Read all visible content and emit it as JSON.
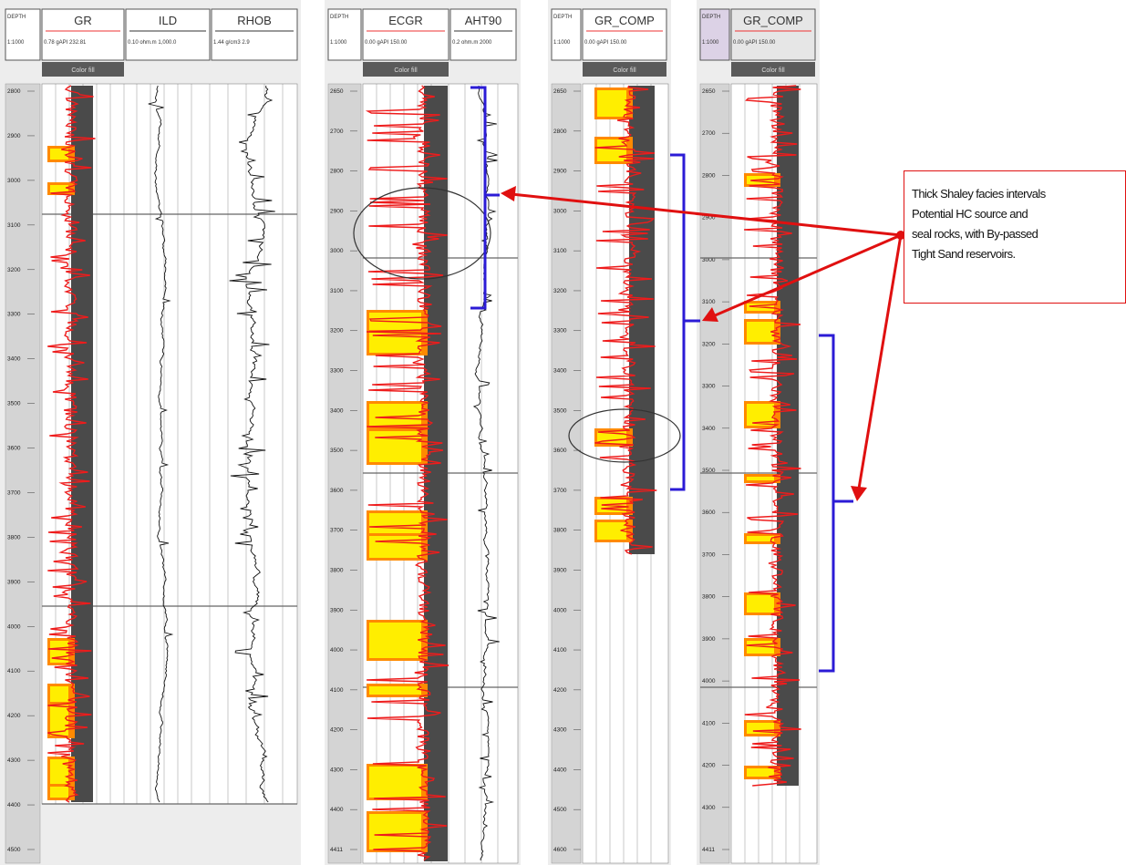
{
  "panels": [
    {
      "tracks": [
        {
          "name": "GR",
          "scale": "0.78 gAPI 232.81",
          "color_btn": "Color fill"
        },
        {
          "name": "ILD",
          "scale": "0.10 ohm.m 1,000.0",
          "color_btn": ""
        },
        {
          "name": "RHOB",
          "scale": "1.44 g/cm3 2.9",
          "color_btn": ""
        }
      ],
      "depth_header": {
        "label": "DEPTH",
        "scale": "1:1000"
      },
      "depth_labels": [
        "2800",
        "2900",
        "3000",
        "3100",
        "3200",
        "3300",
        "3400",
        "3500",
        "3600",
        "3700",
        "3800",
        "3900",
        "4000",
        "4100",
        "4200",
        "4300",
        "4400",
        "4500"
      ]
    },
    {
      "tracks": [
        {
          "name": "ECGR",
          "scale": "0.00 gAPI 150.00",
          "color_btn": "Color fill"
        },
        {
          "name": "AHT90",
          "scale": "0.2 ohm.m 2000",
          "color_btn": ""
        }
      ],
      "depth_header": {
        "label": "DEPTH",
        "scale": "1:1000"
      },
      "depth_labels": [
        "2650",
        "2700",
        "2800",
        "2900",
        "3000",
        "3100",
        "3200",
        "3300",
        "3400",
        "3500",
        "3600",
        "3700",
        "3800",
        "3900",
        "4000",
        "4100",
        "4200",
        "4300",
        "4400",
        "4411"
      ]
    },
    {
      "tracks": [
        {
          "name": "GR_COMP",
          "scale": "0.00 gAPI 150.00",
          "color_btn": "Color fill"
        }
      ],
      "depth_header": {
        "label": "DEPTH",
        "scale": "1:1000"
      },
      "depth_labels": [
        "2650",
        "2800",
        "2900",
        "3000",
        "3100",
        "3200",
        "3300",
        "3400",
        "3500",
        "3600",
        "3700",
        "3800",
        "3900",
        "4000",
        "4100",
        "4200",
        "4300",
        "4400",
        "4500",
        "4600"
      ]
    },
    {
      "tracks": [
        {
          "name": "GR_COMP",
          "scale": "0.00 gAPI 150.00",
          "color_btn": "Color fill"
        }
      ],
      "depth_header": {
        "label": "DEPTH",
        "scale": "1:1000"
      },
      "depth_labels": [
        "2650",
        "2700",
        "2800",
        "2900",
        "3000",
        "3100",
        "3200",
        "3300",
        "3400",
        "3500",
        "3600",
        "3700",
        "3800",
        "3900",
        "4000",
        "4100",
        "4200",
        "4300",
        "4411"
      ]
    }
  ],
  "annotation": {
    "lines": [
      "Thick Shaley facies intervals",
      "Potential HC source and",
      "seal rocks, with By-passed",
      "Tight Sand reservoirs."
    ]
  },
  "colors": {
    "gr_curve": "#ee1c1c",
    "shale_fill": "#4a4a4a",
    "sand_fill": "#ffee00",
    "sand_edge": "#ff8a00",
    "bracket": "#2b1bd6",
    "arrow": "#e01010"
  }
}
